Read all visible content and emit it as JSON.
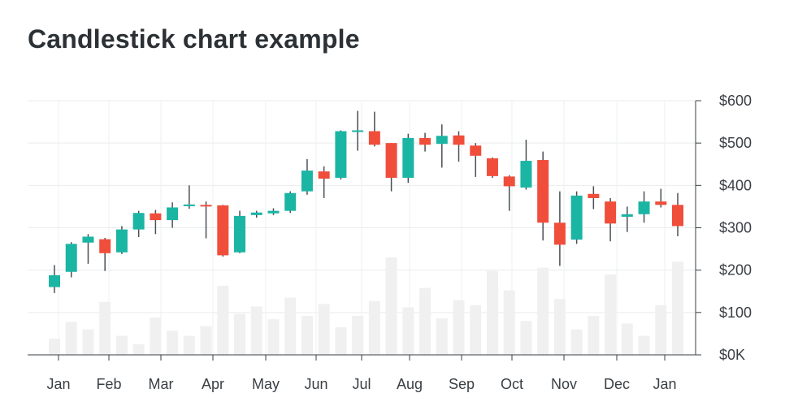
{
  "chart_data": {
    "type": "candlestick",
    "title": "Candlestick chart example",
    "xlabel": "",
    "ylabel": "",
    "ylim": [
      0,
      600
    ],
    "y_ticks": [
      {
        "value": 0,
        "label": "$0K"
      },
      {
        "value": 100,
        "label": "$100"
      },
      {
        "value": 200,
        "label": "$200"
      },
      {
        "value": 300,
        "label": "$300"
      },
      {
        "value": 400,
        "label": "$400"
      },
      {
        "value": 500,
        "label": "$500"
      },
      {
        "value": 600,
        "label": "$600"
      }
    ],
    "x_ticks": [
      "Jan",
      "Feb",
      "Mar",
      "Apr",
      "May",
      "Jun",
      "Jul",
      "Aug",
      "Sep",
      "Oct",
      "Nov",
      "Dec",
      "Jan"
    ],
    "up_color": "#1bb5a4",
    "down_color": "#f04e3b",
    "volume_color": "#f0f0f0",
    "candles": [
      {
        "open": 160,
        "close": 188,
        "high": 212,
        "low": 146,
        "volume": 38
      },
      {
        "open": 196,
        "close": 262,
        "high": 266,
        "low": 183,
        "volume": 78
      },
      {
        "open": 265,
        "close": 279,
        "high": 285,
        "low": 215,
        "volume": 60
      },
      {
        "open": 273,
        "close": 240,
        "high": 276,
        "low": 198,
        "volume": 125
      },
      {
        "open": 242,
        "close": 296,
        "high": 304,
        "low": 238,
        "volume": 45
      },
      {
        "open": 296,
        "close": 335,
        "high": 340,
        "low": 278,
        "volume": 25
      },
      {
        "open": 334,
        "close": 318,
        "high": 342,
        "low": 285,
        "volume": 88
      },
      {
        "open": 318,
        "close": 348,
        "high": 360,
        "low": 300,
        "volume": 57
      },
      {
        "open": 351,
        "close": 355,
        "high": 400,
        "low": 345,
        "volume": 45
      },
      {
        "open": 354,
        "close": 351,
        "high": 362,
        "low": 275,
        "volume": 68
      },
      {
        "open": 353,
        "close": 235,
        "high": 354,
        "low": 232,
        "volume": 163
      },
      {
        "open": 242,
        "close": 328,
        "high": 340,
        "low": 240,
        "volume": 97
      },
      {
        "open": 330,
        "close": 336,
        "high": 340,
        "low": 324,
        "volume": 114
      },
      {
        "open": 334,
        "close": 340,
        "high": 346,
        "low": 330,
        "volume": 84
      },
      {
        "open": 340,
        "close": 382,
        "high": 386,
        "low": 335,
        "volume": 135
      },
      {
        "open": 386,
        "close": 435,
        "high": 462,
        "low": 378,
        "volume": 92
      },
      {
        "open": 433,
        "close": 416,
        "high": 445,
        "low": 370,
        "volume": 120
      },
      {
        "open": 418,
        "close": 528,
        "high": 530,
        "low": 414,
        "volume": 65
      },
      {
        "open": 527,
        "close": 530,
        "high": 576,
        "low": 482,
        "volume": 92
      },
      {
        "open": 528,
        "close": 496,
        "high": 574,
        "low": 492,
        "volume": 127
      },
      {
        "open": 500,
        "close": 418,
        "high": 500,
        "low": 386,
        "volume": 230
      },
      {
        "open": 418,
        "close": 512,
        "high": 522,
        "low": 406,
        "volume": 112
      },
      {
        "open": 512,
        "close": 496,
        "high": 524,
        "low": 480,
        "volume": 158
      },
      {
        "open": 498,
        "close": 517,
        "high": 544,
        "low": 442,
        "volume": 86
      },
      {
        "open": 518,
        "close": 496,
        "high": 528,
        "low": 456,
        "volume": 129
      },
      {
        "open": 494,
        "close": 470,
        "high": 500,
        "low": 420,
        "volume": 117
      },
      {
        "open": 464,
        "close": 422,
        "high": 466,
        "low": 418,
        "volume": 198
      },
      {
        "open": 421,
        "close": 398,
        "high": 424,
        "low": 340,
        "volume": 152
      },
      {
        "open": 395,
        "close": 458,
        "high": 508,
        "low": 390,
        "volume": 80
      },
      {
        "open": 460,
        "close": 312,
        "high": 480,
        "low": 270,
        "volume": 206
      },
      {
        "open": 312,
        "close": 260,
        "high": 386,
        "low": 210,
        "volume": 132
      },
      {
        "open": 272,
        "close": 376,
        "high": 386,
        "low": 262,
        "volume": 60
      },
      {
        "open": 380,
        "close": 370,
        "high": 398,
        "low": 344,
        "volume": 92
      },
      {
        "open": 362,
        "close": 310,
        "high": 370,
        "low": 268,
        "volume": 190
      },
      {
        "open": 326,
        "close": 332,
        "high": 350,
        "low": 290,
        "volume": 74
      },
      {
        "open": 332,
        "close": 362,
        "high": 386,
        "low": 312,
        "volume": 45
      },
      {
        "open": 362,
        "close": 354,
        "high": 392,
        "low": 348,
        "volume": 117
      },
      {
        "open": 354,
        "close": 304,
        "high": 382,
        "low": 280,
        "volume": 220
      }
    ]
  }
}
